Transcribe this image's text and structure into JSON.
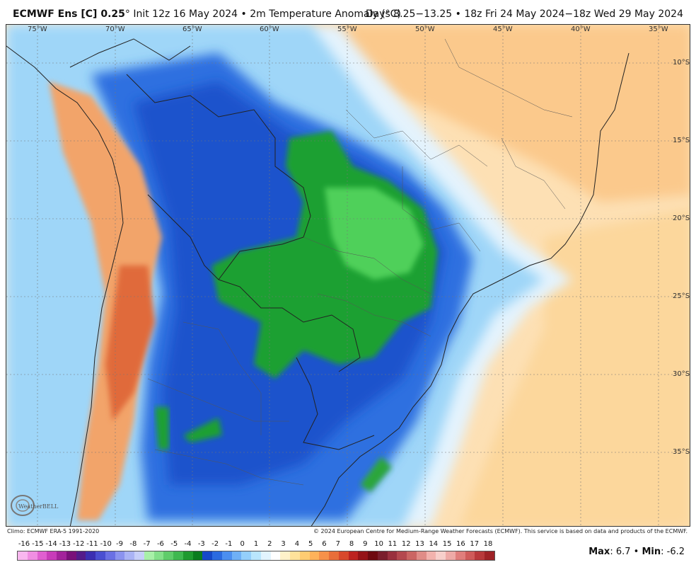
{
  "header": {
    "model_bold": "ECMWF Ens [C] 0.25",
    "model_rest": "° Init 12z 16 May 2024 • 2m Temperature Anomaly (°C)",
    "days": "Days 8.25−13.25 • 18z Fri 24 May 2024−18z Wed 29 May 2024"
  },
  "map": {
    "lon_labels": [
      "75°W",
      "70°W",
      "65°W",
      "60°W",
      "55°W",
      "50°W",
      "45°W",
      "40°W",
      "35°W"
    ],
    "lat_labels": [
      "10°S",
      "15°S",
      "20°S",
      "25°S",
      "30°S",
      "35°S"
    ]
  },
  "footer": {
    "climo": "Climo: ECMWF ERA-5 1991-2020",
    "copyright": "© 2024 European Centre for Medium-Range Weather Forecasts (ECMWF). This service is based on data and products of the ECMWF."
  },
  "logo": {
    "text": "WeatherBELL"
  },
  "colorbar": {
    "ticks": [
      "-16",
      "-15",
      "-14",
      "-13",
      "-12",
      "-11",
      "-10",
      "-9",
      "-8",
      "-7",
      "-6",
      "-5",
      "-4",
      "-3",
      "-2",
      "-1",
      "0",
      "1",
      "2",
      "3",
      "4",
      "5",
      "6",
      "7",
      "8",
      "9",
      "10",
      "11",
      "12",
      "13",
      "14",
      "15",
      "16",
      "17",
      "18"
    ],
    "colors": [
      "#f9b7ef",
      "#f08ee2",
      "#e05fd0",
      "#c83cb9",
      "#a3239b",
      "#7a117a",
      "#541c8a",
      "#3b2fb1",
      "#4a4fd1",
      "#6a70e4",
      "#8b93ef",
      "#aab3f5",
      "#c7cff9",
      "#a8f0a8",
      "#84e08a",
      "#5fcc6a",
      "#3fb84f",
      "#1f9a2f",
      "#0b7c1e",
      "#1648c8",
      "#2b6ae0",
      "#4b8ef0",
      "#6fb0f6",
      "#94cffb",
      "#b9e6fd",
      "#e2f4fe",
      "#ffffff",
      "#fff2c9",
      "#ffe29a",
      "#ffcc72",
      "#ffb25a",
      "#f6914a",
      "#e86e3a",
      "#d8482c",
      "#bd2320",
      "#951317",
      "#6e0a10",
      "#7a1e2c",
      "#99303e",
      "#b4484f",
      "#cb6563",
      "#e08c87",
      "#f2b2ad",
      "#f7cfcb",
      "#eeaaa7",
      "#e07e7c",
      "#cf5b5a",
      "#b8393b",
      "#9e2226"
    ],
    "max_label": "Max",
    "max_value": ": 6.7 • ",
    "min_label": "Min",
    "min_value": ": -6.2"
  }
}
